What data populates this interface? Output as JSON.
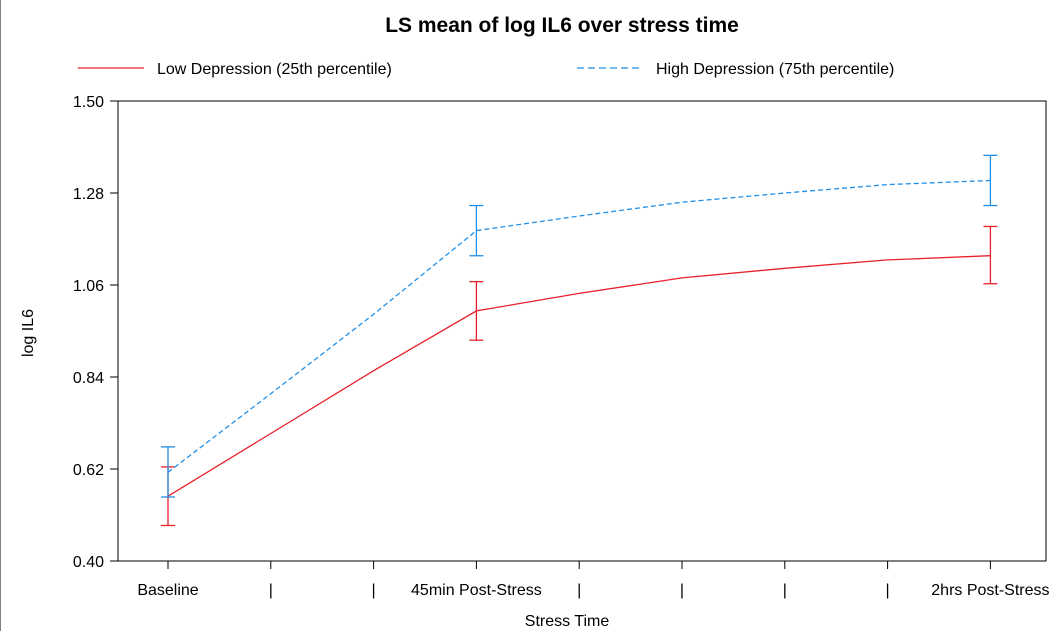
{
  "chart_data": {
    "type": "line",
    "title": "LS mean of log IL6 over stress time",
    "xlabel": "Stress Time",
    "ylabel": "log IL6",
    "x_tick_labels": [
      "Baseline",
      "|",
      "|",
      "45min Post-Stress",
      "|",
      "|",
      "|",
      "|",
      "2hrs Post-Stress"
    ],
    "y_ticks": [
      "0.40",
      "0.62",
      "0.84",
      "1.06",
      "1.28",
      "1.50"
    ],
    "ylim": [
      0.4,
      1.5
    ],
    "legend_position": "top",
    "grid": false,
    "series": [
      {
        "name": "Low Depression (25th percentile)",
        "color": "#e8202a",
        "dash": "solid",
        "line": [
          {
            "x": 0,
            "y": 0.555
          },
          {
            "x": 1,
            "y": 0.705
          },
          {
            "x": 2,
            "y": 0.855
          },
          {
            "x": 3,
            "y": 0.998
          },
          {
            "x": 4,
            "y": 1.04
          },
          {
            "x": 5,
            "y": 1.077
          },
          {
            "x": 6,
            "y": 1.1
          },
          {
            "x": 7,
            "y": 1.12
          },
          {
            "x": 8,
            "y": 1.13
          }
        ],
        "points": [
          {
            "x": 0,
            "y": 0.555,
            "lower": 0.485,
            "upper": 0.625
          },
          {
            "x": 3,
            "y": 0.998,
            "lower": 0.928,
            "upper": 1.068
          },
          {
            "x": 8,
            "y": 1.13,
            "lower": 1.063,
            "upper": 1.2
          }
        ]
      },
      {
        "name": "High Depression (75th percentile)",
        "color": "#1f8fe8",
        "dash": "dashed",
        "line": [
          {
            "x": 0,
            "y": 0.612
          },
          {
            "x": 1,
            "y": 0.8
          },
          {
            "x": 2,
            "y": 0.99
          },
          {
            "x": 3,
            "y": 1.19
          },
          {
            "x": 4,
            "y": 1.225
          },
          {
            "x": 5,
            "y": 1.258
          },
          {
            "x": 6,
            "y": 1.28
          },
          {
            "x": 7,
            "y": 1.3
          },
          {
            "x": 8,
            "y": 1.31
          }
        ],
        "points": [
          {
            "x": 0,
            "y": 0.612,
            "lower": 0.553,
            "upper": 0.673
          },
          {
            "x": 3,
            "y": 1.19,
            "lower": 1.13,
            "upper": 1.25
          },
          {
            "x": 8,
            "y": 1.31,
            "lower": 1.25,
            "upper": 1.37
          }
        ]
      }
    ]
  }
}
